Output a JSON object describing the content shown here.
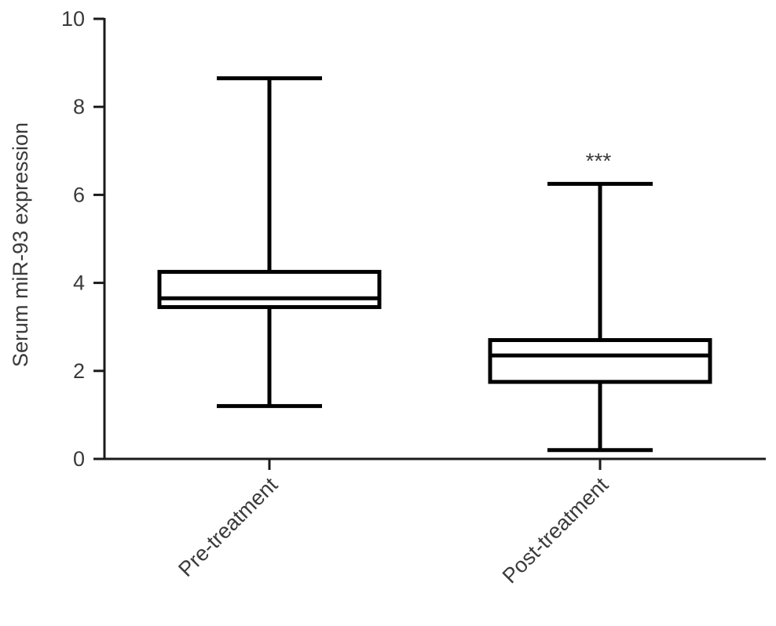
{
  "chart_data": {
    "type": "box",
    "title": "",
    "xlabel": "",
    "ylabel": "Serum miR-93 expression",
    "ylim": [
      0,
      10
    ],
    "yticks": [
      "0",
      "2",
      "4",
      "6",
      "8",
      "10"
    ],
    "grid": false,
    "categories": [
      "Pre-treatment",
      "Post-treatment"
    ],
    "boxes": [
      {
        "category": "Pre-treatment",
        "min": 1.2,
        "q1": 3.45,
        "median": 3.65,
        "q3": 4.25,
        "max": 8.65,
        "annotation": ""
      },
      {
        "category": "Post-treatment",
        "min": 0.2,
        "q1": 1.75,
        "median": 2.35,
        "q3": 2.7,
        "max": 6.25,
        "annotation": "***"
      }
    ]
  }
}
